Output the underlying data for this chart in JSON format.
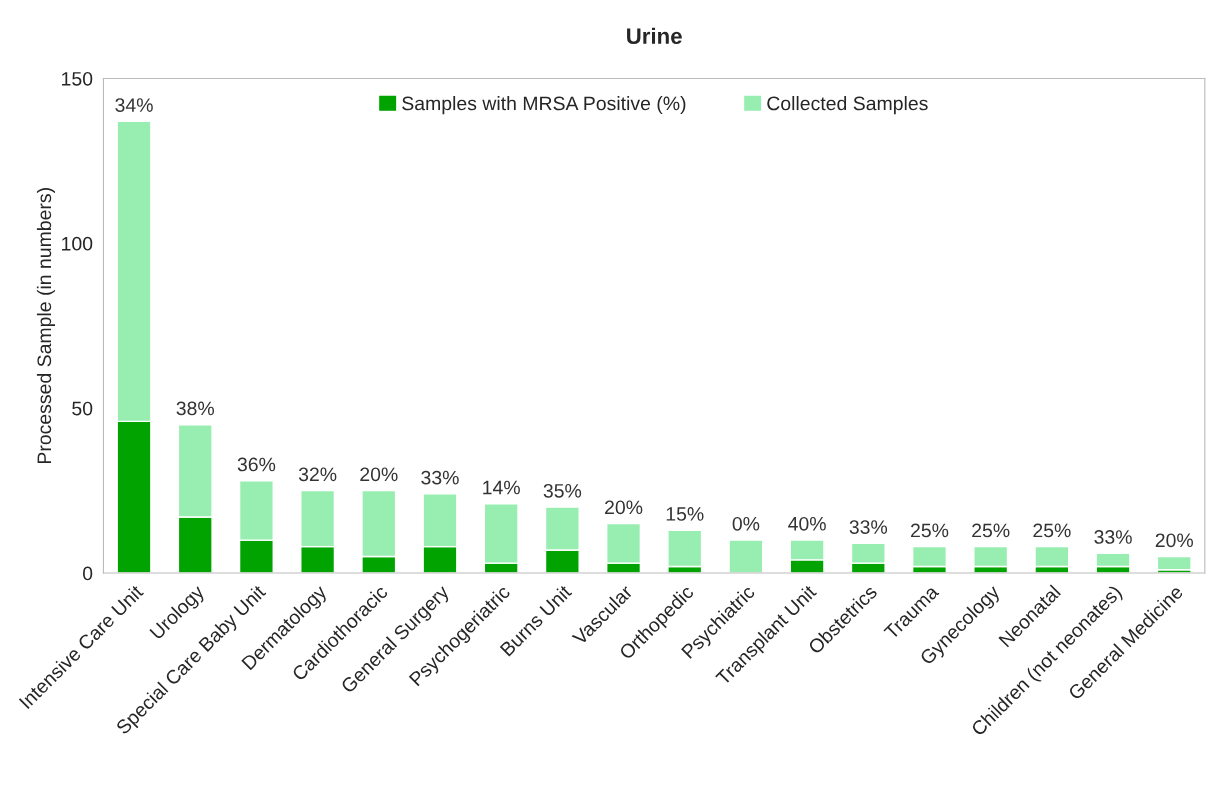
{
  "chart_data": {
    "type": "bar",
    "title": "Urine",
    "ylabel": "Processed Sample (in numbers)",
    "categories": [
      "Intensive Care Unit",
      "Urology",
      "Special Care Baby Unit",
      "Dermatology",
      "Cardiothoracic",
      "General Surgery",
      "Psychogeriatric",
      "Burns Unit",
      "Vascular",
      "Orthopedic",
      "Psychiatric",
      "Transplant Unit",
      "Obstetrics",
      "Trauma",
      "Gynecology",
      "Neonatal",
      "Children (not neonates)",
      "General Medicine"
    ],
    "stacked": true,
    "series": [
      {
        "name": "Samples with MRSA Positive (%)",
        "color": "#00a300",
        "values": [
          46,
          17,
          10,
          8,
          5,
          8,
          3,
          7,
          3,
          2,
          0,
          4,
          3,
          2,
          2,
          2,
          2,
          1
        ]
      },
      {
        "name": "Collected Samples",
        "color": "#98eeb0",
        "values": [
          91,
          28,
          18,
          17,
          20,
          16,
          18,
          13,
          12,
          11,
          10,
          6,
          6,
          6,
          6,
          6,
          4,
          4
        ]
      }
    ],
    "annotations": [
      {
        "text": "34%",
        "x": "Intensive Care Unit",
        "y": 137
      },
      {
        "text": "38%",
        "x": "Urology",
        "y": 45
      },
      {
        "text": "36%",
        "x": "Special Care Baby Unit",
        "y": 28
      },
      {
        "text": "32%",
        "x": "Dermatology",
        "y": 25
      },
      {
        "text": "20%",
        "x": "Cardiothoracic",
        "y": 25
      },
      {
        "text": "33%",
        "x": "General Surgery",
        "y": 24
      },
      {
        "text": "14%",
        "x": "Psychogeriatric",
        "y": 21
      },
      {
        "text": "35%",
        "x": "Burns Unit",
        "y": 20
      },
      {
        "text": "20%",
        "x": "Vascular",
        "y": 15
      },
      {
        "text": "15%",
        "x": "Orthopedic",
        "y": 13
      },
      {
        "text": "0%",
        "x": "Psychiatric",
        "y": 10
      },
      {
        "text": "40%",
        "x": "Transplant Unit",
        "y": 10
      },
      {
        "text": "33%",
        "x": "Obstetrics",
        "y": 9
      },
      {
        "text": "25%",
        "x": "Trauma",
        "y": 8
      },
      {
        "text": "25%",
        "x": "Gynecology",
        "y": 8
      },
      {
        "text": "25%",
        "x": "Neonatal",
        "y": 8
      },
      {
        "text": "33%",
        "x": "Children (not neonates)",
        "y": 6
      },
      {
        "text": "20%",
        "x": "General Medicine",
        "y": 5
      }
    ],
    "ylim": [
      0,
      150
    ],
    "yticks": [
      0,
      50,
      100,
      150
    ],
    "grid": false,
    "legend": "top"
  }
}
